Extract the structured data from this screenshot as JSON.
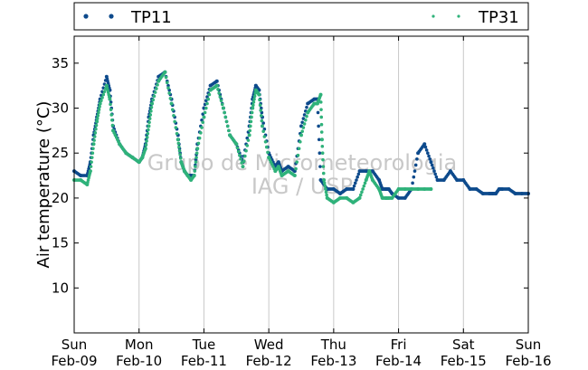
{
  "chart_data": {
    "type": "scatter",
    "xlabel": "",
    "ylabel": "Air temperature (°C)",
    "xlim": [
      0,
      7
    ],
    "ylim": [
      5,
      38
    ],
    "yticks": [
      10,
      15,
      20,
      25,
      30,
      35
    ],
    "xticks": [
      {
        "day": "Sun",
        "date": "Feb-09"
      },
      {
        "day": "Mon",
        "date": "Feb-10"
      },
      {
        "day": "Tue",
        "date": "Feb-11"
      },
      {
        "day": "Wed",
        "date": "Feb-12"
      },
      {
        "day": "Thu",
        "date": "Feb-13"
      },
      {
        "day": "Fri",
        "date": "Feb-14"
      },
      {
        "day": "Sat",
        "date": "Feb-15"
      },
      {
        "day": "Sun",
        "date": "Feb-16"
      }
    ],
    "grid": "vertical",
    "legend_position": "top",
    "watermark": [
      "Grupo de Micrometeorologia",
      "IAG / USP"
    ],
    "series": [
      {
        "name": "TP11",
        "color": "#0d4a8c",
        "x": [
          0,
          0.1,
          0.2,
          0.25,
          0.3,
          0.35,
          0.4,
          0.5,
          0.55,
          0.6,
          0.7,
          0.8,
          0.9,
          1.0,
          1.05,
          1.1,
          1.15,
          1.2,
          1.3,
          1.4,
          1.5,
          1.6,
          1.65,
          1.7,
          1.75,
          1.8,
          1.85,
          1.9,
          2.0,
          2.1,
          2.2,
          2.3,
          2.4,
          2.5,
          2.6,
          2.7,
          2.75,
          2.8,
          2.85,
          2.9,
          3.0,
          3.1,
          3.15,
          3.2,
          3.3,
          3.4,
          3.5,
          3.6,
          3.7,
          3.75,
          3.8,
          3.9,
          4.0,
          4.1,
          4.2,
          4.3,
          4.4,
          4.5,
          4.6,
          4.7,
          4.75,
          4.8,
          4.82,
          4.85,
          4.9,
          5.0,
          5.1,
          5.2,
          5.3,
          5.4,
          5.5,
          5.6,
          5.7,
          5.8,
          5.9,
          6.0,
          6.1,
          6.2,
          6.3,
          6.4,
          6.45,
          6.5,
          6.55,
          6.6,
          6.7,
          6.8,
          6.9,
          7.0
        ],
        "y": [
          23,
          22.5,
          22.5,
          24,
          27,
          29,
          31,
          33.5,
          32,
          28,
          26,
          25,
          24.5,
          24,
          24.5,
          26,
          29,
          31,
          33.5,
          34,
          31,
          27,
          24,
          23,
          22.5,
          22.5,
          22.5,
          26,
          30,
          32.5,
          33,
          30,
          27,
          26,
          24,
          28,
          31,
          32.5,
          32,
          29,
          25,
          23.5,
          24,
          23,
          23.5,
          23,
          28,
          30.5,
          31,
          31,
          22,
          21,
          21,
          20.5,
          21,
          21,
          23,
          23,
          23,
          22,
          21,
          21,
          21,
          21,
          20.5,
          20,
          20,
          21,
          25,
          26,
          24,
          22,
          22,
          23,
          22,
          22,
          21,
          21,
          20.5,
          20.5,
          20.5,
          20.5,
          21,
          21,
          21,
          20.5,
          20.5,
          20.5
        ]
      },
      {
        "name": "TP31",
        "color": "#2fb27a",
        "x": [
          0,
          0.1,
          0.2,
          0.25,
          0.3,
          0.35,
          0.4,
          0.5,
          0.55,
          0.6,
          0.7,
          0.8,
          0.9,
          1.0,
          1.05,
          1.1,
          1.15,
          1.2,
          1.3,
          1.4,
          1.5,
          1.6,
          1.65,
          1.7,
          1.75,
          1.8,
          1.85,
          1.9,
          2.0,
          2.1,
          2.2,
          2.3,
          2.4,
          2.5,
          2.6,
          2.7,
          2.75,
          2.8,
          2.85,
          2.9,
          3.0,
          3.1,
          3.15,
          3.2,
          3.3,
          3.4,
          3.5,
          3.6,
          3.7,
          3.75,
          3.8,
          3.82,
          3.85,
          3.9,
          4.0,
          4.1,
          4.2,
          4.3,
          4.4,
          4.5,
          4.55,
          4.6,
          4.7,
          4.75,
          4.8,
          4.82,
          4.85,
          4.9,
          5.0,
          5.1,
          5.2,
          5.3,
          5.4,
          5.5
        ],
        "y": [
          22,
          22,
          21.5,
          23,
          26,
          28.5,
          30.5,
          32.5,
          31,
          27.5,
          26,
          25,
          24.5,
          24,
          24.5,
          25.5,
          28,
          30.5,
          33,
          34,
          30.5,
          26.5,
          24,
          23,
          22.5,
          22,
          22.5,
          25.5,
          29,
          32,
          32.5,
          30,
          27,
          26,
          23.5,
          27,
          30,
          32,
          31.5,
          28,
          24.5,
          23,
          23.5,
          22.5,
          23,
          22.5,
          27,
          29.5,
          30.5,
          30.5,
          31.5,
          26.5,
          22,
          20,
          19.5,
          20,
          20,
          19.5,
          20,
          22,
          23,
          22,
          21,
          20,
          20,
          20,
          20,
          20,
          21,
          21,
          21,
          21,
          21,
          21
        ]
      }
    ]
  }
}
